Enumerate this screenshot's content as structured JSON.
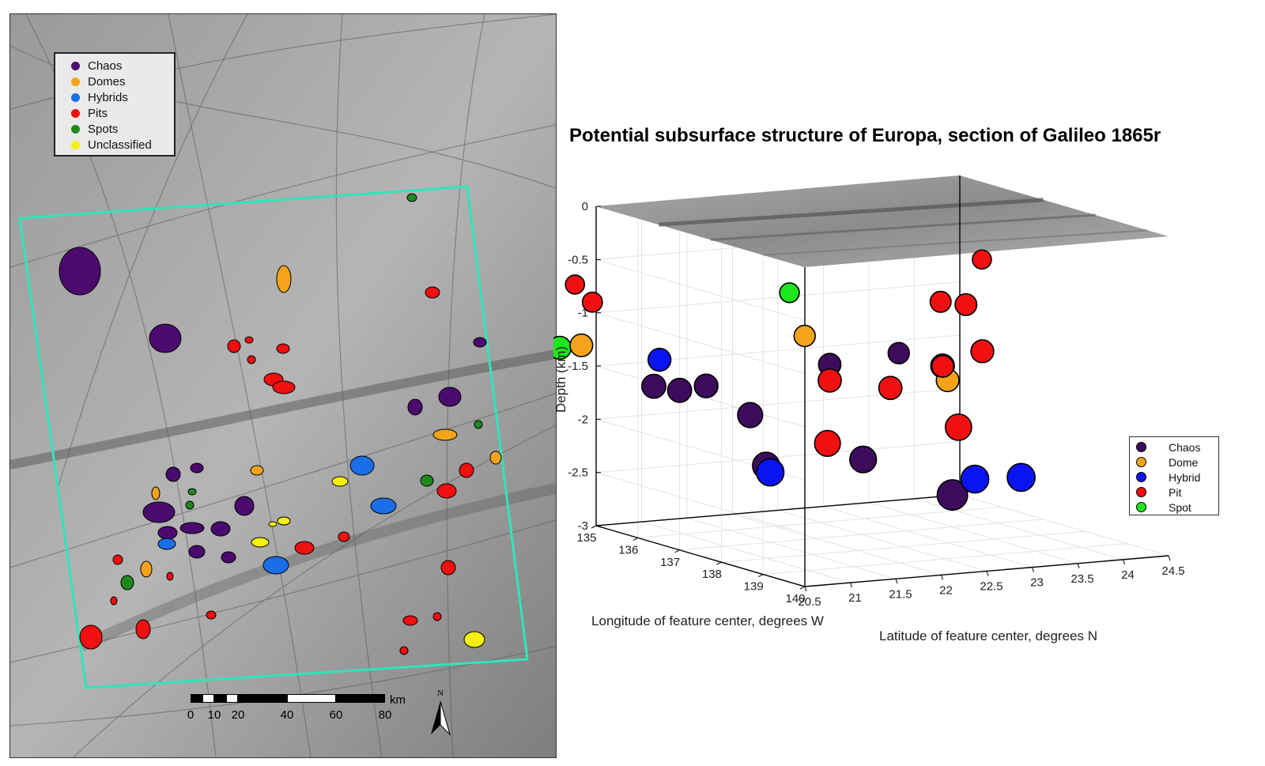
{
  "map": {
    "legend": [
      {
        "label": "Chaos",
        "color": "#4b0a6e"
      },
      {
        "label": "Domes",
        "color": "#f5a31a"
      },
      {
        "label": "Hybrids",
        "color": "#1a6ee8"
      },
      {
        "label": "Pits",
        "color": "#f01010"
      },
      {
        "label": "Spots",
        "color": "#1e8a1e"
      },
      {
        "label": "Unclassified",
        "color": "#f5f010"
      }
    ],
    "boundary_color": "#2ee6b8",
    "scale_labels": [
      "0",
      "10",
      "20",
      "40",
      "60",
      "80"
    ],
    "scale_unit": "km",
    "north_label": "N"
  },
  "chart_data": {
    "type": "scatter3d",
    "title": "Potential subsurface structure of Europa, section of Galileo 1865r",
    "xlabel": "Longitude of feature center, degrees W",
    "ylabel": "Latitude of feature center, degrees N",
    "zlabel": "Depth (km)",
    "xlim": [
      135,
      140
    ],
    "ylim": [
      20.5,
      24.5
    ],
    "zlim": [
      -3,
      0
    ],
    "xticks": [
      "135",
      "136",
      "137",
      "138",
      "139",
      "140"
    ],
    "yticks": [
      "20.5",
      "21",
      "21.5",
      "22",
      "22.5",
      "23",
      "23.5",
      "24",
      "24.5"
    ],
    "zticks": [
      "0",
      "-0.5",
      "-1",
      "-1.5",
      "-2",
      "-2.5",
      "-3"
    ],
    "grid": true,
    "legend_position": "right",
    "series": [
      {
        "name": "Chaos",
        "color": "#3d0a5c",
        "points": [
          {
            "x": 139.2,
            "y": 21.9,
            "z": -1.0
          },
          {
            "x": 138.2,
            "y": 21.6,
            "z": -1.2
          },
          {
            "x": 137.2,
            "y": 20.7,
            "z": -1.45
          },
          {
            "x": 137.0,
            "y": 20.5,
            "z": -1.5
          },
          {
            "x": 136.6,
            "y": 20.4,
            "z": -1.5
          },
          {
            "x": 137.6,
            "y": 21.0,
            "z": -1.7
          },
          {
            "x": 139.0,
            "y": 21.6,
            "z": -2.0
          },
          {
            "x": 138.2,
            "y": 20.9,
            "z": -2.1
          },
          {
            "x": 137.0,
            "y": 23.5,
            "z": -2.7
          }
        ]
      },
      {
        "name": "Dome",
        "color": "#f5a31a",
        "points": [
          {
            "x": 137.6,
            "y": 21.6,
            "z": -1.0
          },
          {
            "x": 135.3,
            "y": 20.2,
            "z": -1.25
          },
          {
            "x": 139.5,
            "y": 22.3,
            "z": -1.25
          }
        ]
      },
      {
        "name": "Hybrid",
        "color": "#0a14f0",
        "points": [
          {
            "x": 136.3,
            "y": 20.6,
            "z": -1.3
          },
          {
            "x": 138.3,
            "y": 20.9,
            "z": -2.15
          },
          {
            "x": 139.5,
            "y": 22.6,
            "z": -2.2
          },
          {
            "x": 139.3,
            "y": 23.2,
            "z": -2.25
          }
        ]
      },
      {
        "name": "Pit",
        "color": "#f01010",
        "points": [
          {
            "x": 135.8,
            "y": 19.9,
            "z": -0.6
          },
          {
            "x": 136.0,
            "y": 20.0,
            "z": -0.75
          },
          {
            "x": 135.2,
            "y": 19.8,
            "z": -1.1
          },
          {
            "x": 138.2,
            "y": 21.6,
            "z": -1.35
          },
          {
            "x": 139.6,
            "y": 22.2,
            "z": -1.1
          },
          {
            "x": 139.0,
            "y": 21.9,
            "z": -1.35
          },
          {
            "x": 138.8,
            "y": 21.3,
            "z": -1.85
          },
          {
            "x": 136.5,
            "y": 23.6,
            "z": -0.95
          },
          {
            "x": 136.4,
            "y": 24.1,
            "z": -0.6
          },
          {
            "x": 135.8,
            "y": 24.2,
            "z": -1.1
          },
          {
            "x": 137.5,
            "y": 23.6,
            "z": -1.3
          },
          {
            "x": 137.2,
            "y": 23.3,
            "z": -1.45
          },
          {
            "x": 137.8,
            "y": 23.2,
            "z": -1.95
          }
        ]
      },
      {
        "name": "Spot",
        "color": "#1ee61e",
        "points": [
          {
            "x": 135.0,
            "y": 20.1,
            "z": -1.3
          },
          {
            "x": 136.8,
            "y": 21.8,
            "z": -0.7
          }
        ]
      }
    ]
  },
  "chart_legend": [
    {
      "label": "Chaos",
      "color": "#3d0a5c"
    },
    {
      "label": "Dome",
      "color": "#f5a31a"
    },
    {
      "label": "Hybrid",
      "color": "#0a14f0"
    },
    {
      "label": "Pit",
      "color": "#f01010"
    },
    {
      "label": "Spot",
      "color": "#1ee61e"
    }
  ]
}
